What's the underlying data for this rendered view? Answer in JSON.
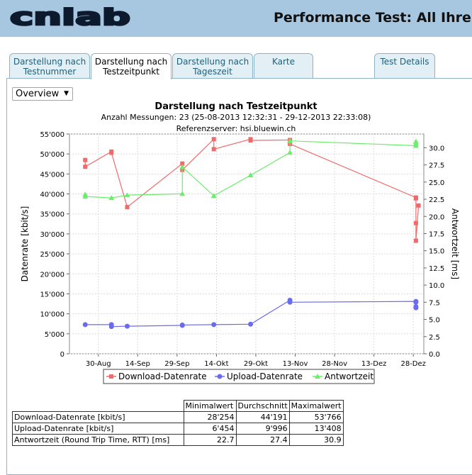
{
  "header": {
    "logo_text": "cnlab",
    "title": "Performance Test: All Ihre F"
  },
  "tabs": [
    {
      "label": "Darstellung nach\nTestnummer",
      "active": false
    },
    {
      "label": "Darstellung nach\nTestzeitpunkt",
      "active": true
    },
    {
      "label": "Darstellung nach\nTageszeit",
      "active": false
    },
    {
      "label": "Karte",
      "active": false
    },
    {
      "label": "Test Details",
      "active": false
    }
  ],
  "view_select": {
    "value": "Overview"
  },
  "chart": {
    "title": "Darstellung nach Testzeitpunkt",
    "subtitle": "Anzahl Messungen: 23 (25-08-2013 12:32:31 - 29-12-2013 22:33:08)",
    "server": "Referenzserver: hsi.bluewin.ch"
  },
  "chart_data": {
    "type": "line",
    "xlabel": "",
    "ylabel": "Datenrate [kbit/s]",
    "y2label": "Antwortzeit [ms]",
    "x_ticks": [
      "30-Aug",
      "14-Sep",
      "29-Sep",
      "14-Okt",
      "29-Okt",
      "13-Nov",
      "28-Nov",
      "13-Dez",
      "28-Dez"
    ],
    "y_ticks": [
      "0",
      "5'000",
      "10'000",
      "15'000",
      "20'000",
      "25'000",
      "30'000",
      "35'000",
      "40'000",
      "45'000",
      "50'000",
      "55'000"
    ],
    "y2_ticks": [
      "0.0",
      "2.5",
      "5.0",
      "7.5",
      "10.0",
      "12.5",
      "15.0",
      "17.5",
      "20.0",
      "22.5",
      "25.0",
      "27.5",
      "30.0"
    ],
    "ylim": [
      0,
      55000
    ],
    "y2lim": [
      0,
      32
    ],
    "xlim": [
      "2013-08-19",
      "2014-01-01"
    ],
    "grid": true,
    "legend_position": "bottom",
    "colors": {
      "download": "#ee6b6b",
      "upload": "#6b6bee",
      "rtt": "#6bee6b"
    },
    "series": [
      {
        "name": "Download-Datenrate",
        "axis": "left",
        "points": [
          [
            "2013-08-25",
            48500
          ],
          [
            "2013-08-25",
            46800
          ],
          [
            "2013-09-04",
            50600
          ],
          [
            "2013-09-04",
            50300
          ],
          [
            "2013-09-10",
            36700
          ],
          [
            "2013-10-01",
            47600
          ],
          [
            "2013-10-01",
            46000
          ],
          [
            "2013-10-13",
            53700
          ],
          [
            "2013-10-13",
            51200
          ],
          [
            "2013-10-27",
            53700
          ],
          [
            "2013-10-27",
            53400
          ],
          [
            "2013-11-11",
            53500
          ],
          [
            "2013-11-11",
            52500
          ],
          [
            "2013-12-29",
            39100
          ],
          [
            "2013-12-29",
            38900
          ],
          [
            "2013-12-29",
            32700
          ],
          [
            "2013-12-29",
            28300
          ],
          [
            "2013-12-30",
            37100
          ]
        ]
      },
      {
        "name": "Upload-Datenrate",
        "axis": "left",
        "points": [
          [
            "2013-08-25",
            7300
          ],
          [
            "2013-09-04",
            7300
          ],
          [
            "2013-09-04",
            6800
          ],
          [
            "2013-09-10",
            6900
          ],
          [
            "2013-10-01",
            7100
          ],
          [
            "2013-10-01",
            7200
          ],
          [
            "2013-10-13",
            7300
          ],
          [
            "2013-10-27",
            7400
          ],
          [
            "2013-11-11",
            13400
          ],
          [
            "2013-11-11",
            12900
          ],
          [
            "2013-12-29",
            13100
          ],
          [
            "2013-12-29",
            12900
          ],
          [
            "2013-12-29",
            11800
          ],
          [
            "2013-12-29",
            11500
          ]
        ]
      },
      {
        "name": "Antwortzeit",
        "axis": "right",
        "points": [
          [
            "2013-08-25",
            23.2
          ],
          [
            "2013-08-25",
            22.9
          ],
          [
            "2013-09-04",
            22.7
          ],
          [
            "2013-09-10",
            23.1
          ],
          [
            "2013-10-01",
            23.3
          ],
          [
            "2013-10-01",
            27.2
          ],
          [
            "2013-10-13",
            23.0
          ],
          [
            "2013-10-27",
            26.0
          ],
          [
            "2013-11-11",
            29.3
          ],
          [
            "2013-11-11",
            31.0
          ],
          [
            "2013-12-29",
            30.3
          ],
          [
            "2013-12-29",
            30.6
          ],
          [
            "2013-12-29",
            30.9
          ]
        ]
      }
    ]
  },
  "stats_table": {
    "headers": [
      "Minimalwert",
      "Durchschnitt",
      "Maximalwert"
    ],
    "rows": [
      {
        "label": "Download-Datenrate [kbit/s]",
        "min": "28'254",
        "avg": "44'191",
        "max": "53'766"
      },
      {
        "label": "Upload-Datenrate [kbit/s]",
        "min": "6'454",
        "avg": "9'996",
        "max": "13'408"
      },
      {
        "label": "Antwortzeit (Round Trip Time, RTT) [ms]",
        "min": "22.7",
        "avg": "27.4",
        "max": "30.9"
      }
    ]
  }
}
